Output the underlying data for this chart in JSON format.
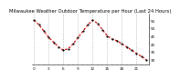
{
  "title": "Milwaukee Weather Outdoor Temperature per Hour (Last 24 Hours)",
  "hours": [
    0,
    1,
    2,
    3,
    4,
    5,
    6,
    7,
    8,
    9,
    10,
    11,
    12,
    13,
    14,
    15,
    16,
    17,
    18,
    19,
    20,
    21,
    22,
    23
  ],
  "temps": [
    55,
    52,
    48,
    44,
    41,
    38,
    36,
    37,
    40,
    44,
    48,
    52,
    55,
    53,
    49,
    45,
    43,
    42,
    40,
    38,
    36,
    34,
    32,
    30
  ],
  "ylim": [
    27,
    59
  ],
  "yticks": [
    30,
    35,
    40,
    45,
    50,
    55
  ],
  "line_color": "#cc0000",
  "marker_color": "#000000",
  "bg_color": "#ffffff",
  "grid_color": "#999999",
  "title_fontsize": 3.8,
  "tick_fontsize": 3.0,
  "grid_hours": [
    0,
    3,
    6,
    9,
    12,
    15,
    18,
    21
  ]
}
